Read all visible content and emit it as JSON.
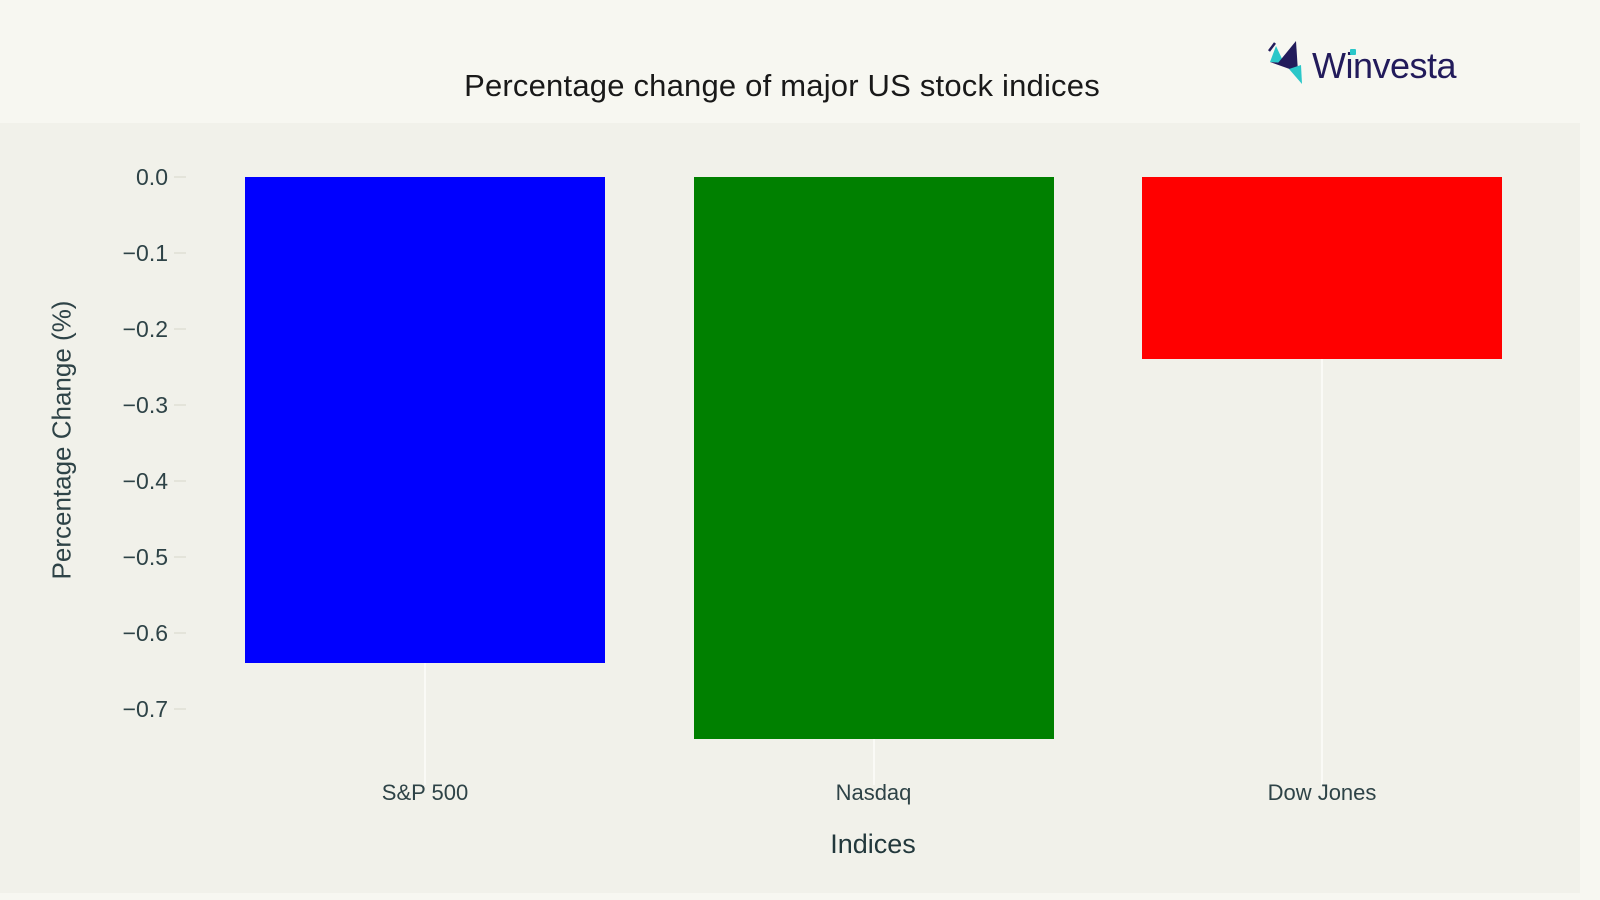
{
  "page": {
    "brand": {
      "name": "Winvesta"
    }
  },
  "colors": {
    "page_bg": "#f7f7f1",
    "plot_bg": "#f1f1ea",
    "title_text": "#191919",
    "axis_text": "#2e4347",
    "brand_navy": "#221b5b",
    "brand_teal": "#2bc7c9",
    "gridline": "#fafaf6"
  },
  "chart_data": {
    "type": "bar",
    "title": "Percentage change of major US stock indices",
    "xlabel": "Indices",
    "ylabel": "Percentage Change (%)",
    "categories": [
      "S&P 500",
      "Nasdaq",
      "Dow Jones"
    ],
    "values": [
      -0.64,
      -0.74,
      -0.24
    ],
    "bar_colors": [
      "#0000ff",
      "#008000",
      "#ff0000"
    ],
    "yticks": [
      "0.0",
      "−0.1",
      "−0.2",
      "−0.3",
      "−0.4",
      "−0.5",
      "−0.6",
      "−0.7"
    ],
    "ylim": [
      -0.8,
      0
    ],
    "grid": "faint-vertical-lines-at-category-centers",
    "legend": "none"
  }
}
